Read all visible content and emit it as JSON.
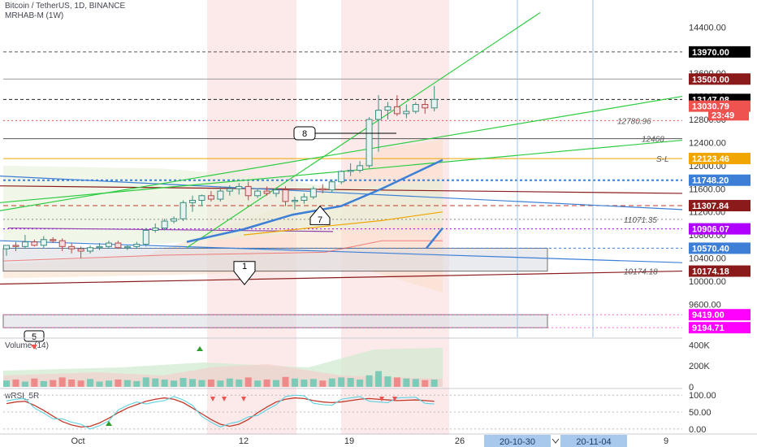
{
  "header": {
    "symbol_line": "Bitcoin / TetherUS, 1D, BINANCE",
    "indicator_line": "MRHAB-M (1W)"
  },
  "colors": {
    "bull": "#26a69a",
    "bear": "#ef5350",
    "green_line": "#2ecc40",
    "blue_line": "#3d7fd6",
    "dark_red": "#8b1a1a",
    "orange": "#f0a500",
    "violet": "#b000ff",
    "magenta": "#ff00ff",
    "axis_bg": "#ffffff"
  },
  "chart_data": [
    {
      "type": "candlestick",
      "ylim": [
        9000,
        14700
      ],
      "x_labels": [
        "Oct",
        "12",
        "19",
        "26",
        "9"
      ],
      "x_tag_labels": [
        "20-10-30",
        "20-11-04"
      ],
      "y_ticks": [
        9600,
        10000,
        10400,
        10800,
        11200,
        11600,
        12000,
        12400,
        12800,
        13200,
        13600,
        14000,
        14400
      ],
      "y_tick_labels": [
        "9600.00",
        "10000.00",
        "10400.00",
        "10800.00",
        "11200.00",
        "11600.00",
        "12000.00",
        "12400.00",
        "12800.00",
        "13200.00",
        "13600.00",
        "14000.00",
        "14400.00"
      ],
      "price_tags": [
        {
          "value": 13970,
          "label": "13970.00",
          "color": "#000000"
        },
        {
          "value": 13500,
          "label": "13500.00",
          "color": "#8b1a1a"
        },
        {
          "value": 13147.08,
          "label": "13147.08",
          "color": "#000000"
        },
        {
          "value": 13030.79,
          "label": "13030.79",
          "color": "#ef5350"
        },
        {
          "value": 12880,
          "label": "23:49",
          "color": "#ef5350"
        },
        {
          "value": 12123.46,
          "label": "12123.46",
          "color": "#f0a500"
        },
        {
          "value": 11748.2,
          "label": "11748.20",
          "color": "#3d7fd6"
        },
        {
          "value": 11307.84,
          "label": "11307.84",
          "color": "#8b1a1a"
        },
        {
          "value": 10906.07,
          "label": "10906.07",
          "color": "#b000ff"
        },
        {
          "value": 10570.4,
          "label": "10570.40",
          "color": "#3d7fd6"
        },
        {
          "value": 10174.18,
          "label": "10174.18",
          "color": "#8b1a1a"
        },
        {
          "value": 9419.0,
          "label": "9419.00",
          "color": "#ff00ff"
        },
        {
          "value": 9194.71,
          "label": "9194.71",
          "color": "#ff00ff"
        }
      ],
      "level_labels": [
        {
          "value": 12780.96,
          "label": "12780.96"
        },
        {
          "value": 12468,
          "label": "12468"
        },
        {
          "value": 12123.46,
          "label": "S-L"
        },
        {
          "value": 11071.35,
          "label": "11071.35"
        },
        {
          "value": 10174.18,
          "label": "10174.18"
        }
      ],
      "annotations": [
        "8",
        "7",
        "1",
        "5"
      ],
      "candles": [
        {
          "o": 10560,
          "h": 10620,
          "l": 10440,
          "c": 10620
        },
        {
          "o": 10620,
          "h": 10680,
          "l": 10520,
          "c": 10600
        },
        {
          "o": 10600,
          "h": 10800,
          "l": 10560,
          "c": 10680
        },
        {
          "o": 10680,
          "h": 10720,
          "l": 10600,
          "c": 10620
        },
        {
          "o": 10620,
          "h": 10780,
          "l": 10580,
          "c": 10720
        },
        {
          "o": 10720,
          "h": 10760,
          "l": 10660,
          "c": 10700
        },
        {
          "o": 10700,
          "h": 10740,
          "l": 10520,
          "c": 10600
        },
        {
          "o": 10600,
          "h": 10660,
          "l": 10480,
          "c": 10560
        },
        {
          "o": 10560,
          "h": 10600,
          "l": 10400,
          "c": 10520
        },
        {
          "o": 10520,
          "h": 10620,
          "l": 10480,
          "c": 10580
        },
        {
          "o": 10580,
          "h": 10660,
          "l": 10540,
          "c": 10600
        },
        {
          "o": 10600,
          "h": 10700,
          "l": 10560,
          "c": 10660
        },
        {
          "o": 10660,
          "h": 10700,
          "l": 10560,
          "c": 10580
        },
        {
          "o": 10580,
          "h": 10620,
          "l": 10540,
          "c": 10600
        },
        {
          "o": 10600,
          "h": 10680,
          "l": 10560,
          "c": 10640
        },
        {
          "o": 10640,
          "h": 10920,
          "l": 10600,
          "c": 10880
        },
        {
          "o": 10880,
          "h": 11000,
          "l": 10840,
          "c": 10920
        },
        {
          "o": 10920,
          "h": 11080,
          "l": 10880,
          "c": 11040
        },
        {
          "o": 11040,
          "h": 11120,
          "l": 11000,
          "c": 11080
        },
        {
          "o": 11080,
          "h": 11400,
          "l": 11040,
          "c": 11360
        },
        {
          "o": 11360,
          "h": 11480,
          "l": 11200,
          "c": 11400
        },
        {
          "o": 11400,
          "h": 11500,
          "l": 11300,
          "c": 11480
        },
        {
          "o": 11480,
          "h": 11560,
          "l": 11380,
          "c": 11420
        },
        {
          "o": 11420,
          "h": 11640,
          "l": 11380,
          "c": 11560
        },
        {
          "o": 11560,
          "h": 11660,
          "l": 11480,
          "c": 11600
        },
        {
          "o": 11600,
          "h": 11700,
          "l": 11500,
          "c": 11640
        },
        {
          "o": 11640,
          "h": 11720,
          "l": 11400,
          "c": 11480
        },
        {
          "o": 11480,
          "h": 11600,
          "l": 11440,
          "c": 11560
        },
        {
          "o": 11560,
          "h": 11640,
          "l": 11480,
          "c": 11520
        },
        {
          "o": 11520,
          "h": 11620,
          "l": 11460,
          "c": 11580
        },
        {
          "o": 11580,
          "h": 11640,
          "l": 11300,
          "c": 11380
        },
        {
          "o": 11380,
          "h": 11460,
          "l": 11240,
          "c": 11400
        },
        {
          "o": 11400,
          "h": 11520,
          "l": 11340,
          "c": 11460
        },
        {
          "o": 11460,
          "h": 11640,
          "l": 11420,
          "c": 11600
        },
        {
          "o": 11600,
          "h": 11680,
          "l": 11520,
          "c": 11580
        },
        {
          "o": 11580,
          "h": 11760,
          "l": 11540,
          "c": 11720
        },
        {
          "o": 11720,
          "h": 11920,
          "l": 11680,
          "c": 11900
        },
        {
          "o": 11900,
          "h": 12040,
          "l": 11820,
          "c": 11920
        },
        {
          "o": 11920,
          "h": 12080,
          "l": 11880,
          "c": 12000
        },
        {
          "o": 12000,
          "h": 12840,
          "l": 11960,
          "c": 12800
        },
        {
          "o": 12800,
          "h": 13220,
          "l": 12240,
          "c": 12960
        },
        {
          "o": 12960,
          "h": 13100,
          "l": 12800,
          "c": 13020
        },
        {
          "o": 13020,
          "h": 13220,
          "l": 12860,
          "c": 12900
        },
        {
          "o": 12900,
          "h": 13060,
          "l": 12820,
          "c": 12940
        },
        {
          "o": 12940,
          "h": 13100,
          "l": 12900,
          "c": 13060
        },
        {
          "o": 13060,
          "h": 13140,
          "l": 12900,
          "c": 13000
        },
        {
          "o": 13000,
          "h": 13380,
          "l": 12940,
          "c": 13147
        }
      ]
    },
    {
      "type": "bar",
      "title": "Volume (14)",
      "ylim": [
        0,
        450000
      ],
      "y_tick_labels": [
        "400K",
        "200K",
        "0"
      ],
      "y_ticks": [
        400000,
        200000,
        0
      ],
      "values": [
        60000,
        70000,
        50000,
        80000,
        55000,
        65000,
        90000,
        70000,
        60000,
        75000,
        50000,
        60000,
        70000,
        65000,
        55000,
        90000,
        80000,
        70000,
        60000,
        85000,
        75000,
        65000,
        70000,
        60000,
        80000,
        70000,
        90000,
        60000,
        70000,
        65000,
        95000,
        80000,
        70000,
        75000,
        60000,
        80000,
        90000,
        85000,
        70000,
        110000,
        150000,
        100000,
        90000,
        80000,
        75000,
        65000,
        70000
      ]
    },
    {
      "type": "line",
      "title": "wRSI_5R",
      "ylim": [
        -10,
        115
      ],
      "y_tick_labels": [
        "100.00",
        "50.00",
        "0.00"
      ],
      "y_ticks": [
        100,
        50,
        0
      ],
      "values": [
        75,
        80,
        82,
        70,
        55,
        38,
        22,
        12,
        6,
        8,
        18,
        32,
        48,
        62,
        72,
        82,
        88,
        92,
        88,
        78,
        62,
        45,
        28,
        14,
        8,
        14,
        28,
        48,
        65,
        80,
        88,
        92,
        90,
        84,
        80,
        78,
        80,
        84,
        88,
        90,
        88,
        86,
        84,
        85,
        86,
        84,
        82
      ]
    }
  ]
}
